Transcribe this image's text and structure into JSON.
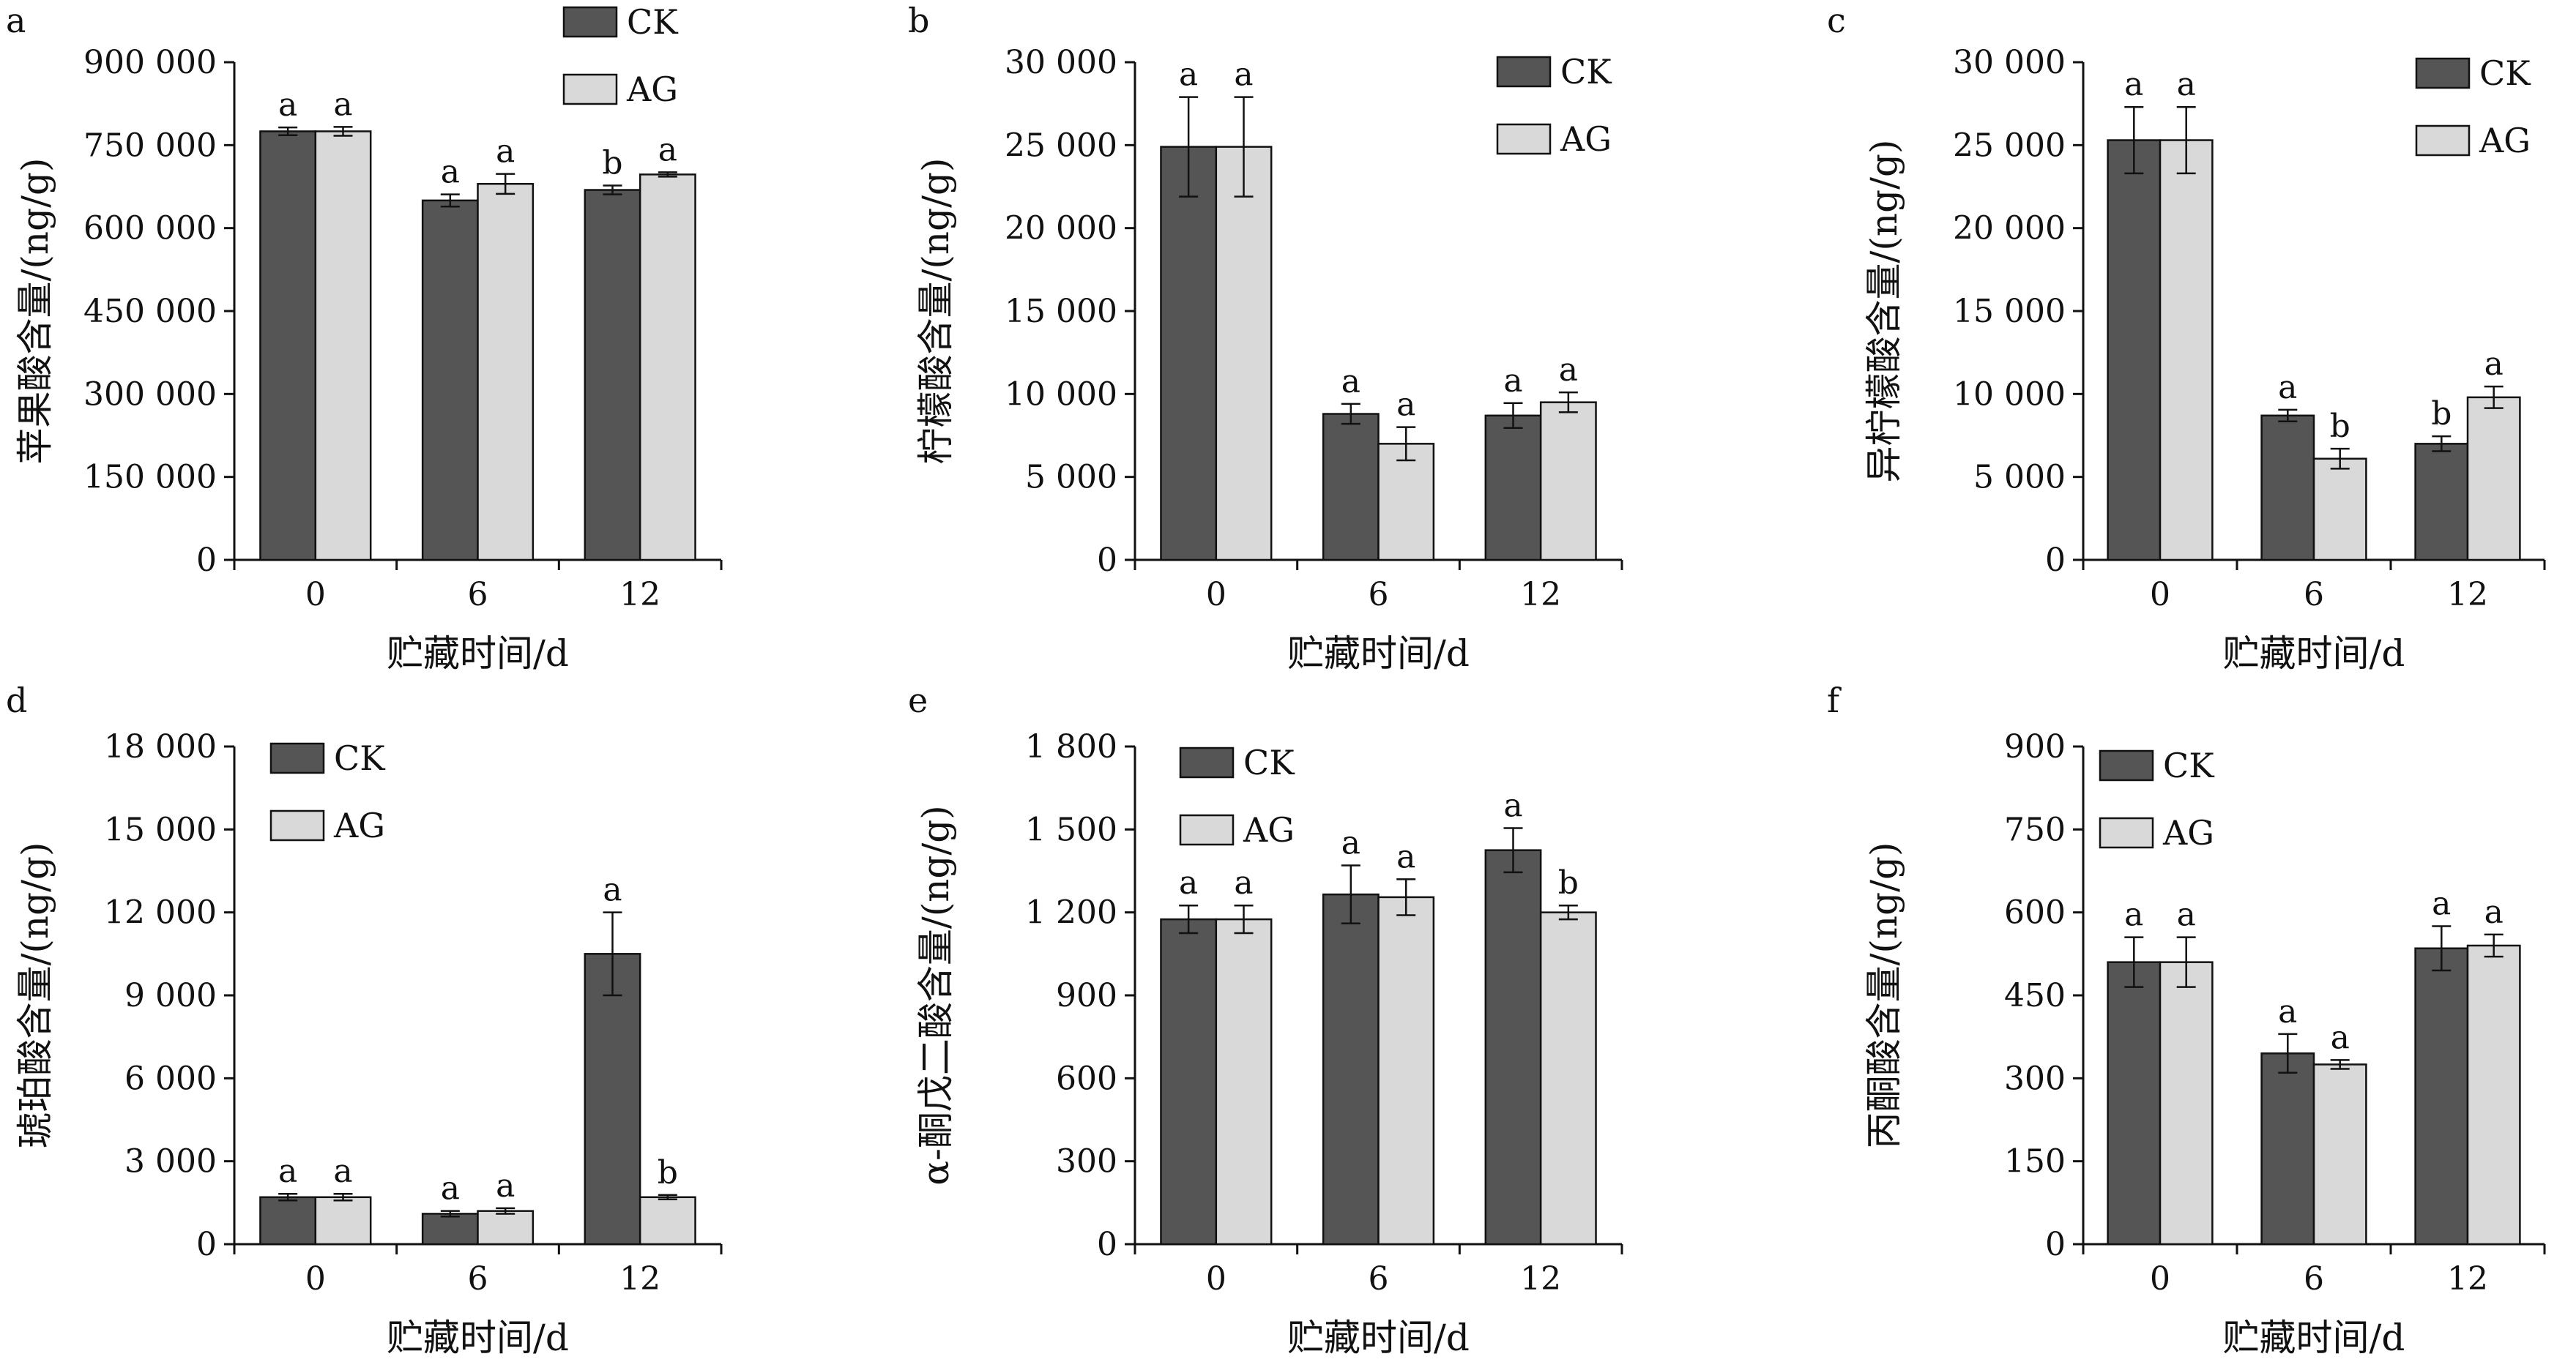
{
  "colors": {
    "CK": "#555555",
    "AG": "#d9d9d9",
    "axis": "#111111"
  },
  "chart_data": [
    {
      "type": "bar",
      "panel": "a",
      "categories": [
        "0",
        "6",
        "12"
      ],
      "xlabel": "贮藏时间/d",
      "ylabel": "苹果酸含量/(ng/g)",
      "ylim": [
        0,
        900000
      ],
      "yticks": [
        "0",
        "150 000",
        "300 000",
        "450 000",
        "600 000",
        "750 000",
        "900 000"
      ],
      "legend": [
        "CK",
        "AG"
      ],
      "legend_position": "top-right",
      "series": [
        {
          "name": "CK",
          "values": [
            775000,
            650000,
            669000
          ],
          "errors": [
            7000,
            11000,
            8000
          ],
          "labels": [
            "a",
            "a",
            "b"
          ]
        },
        {
          "name": "AG",
          "values": [
            775000,
            680000,
            697000
          ],
          "errors": [
            8000,
            18000,
            4000
          ],
          "labels": [
            "a",
            "a",
            "a"
          ]
        }
      ]
    },
    {
      "type": "bar",
      "panel": "b",
      "categories": [
        "0",
        "6",
        "12"
      ],
      "xlabel": "贮藏时间/d",
      "ylabel": "柠檬酸含量/(ng/g)",
      "ylim": [
        0,
        30000
      ],
      "yticks": [
        "0",
        "5 000",
        "10 000",
        "15 000",
        "20 000",
        "25 000",
        "30 000"
      ],
      "legend": [
        "CK",
        "AG"
      ],
      "legend_position": "top-right",
      "series": [
        {
          "name": "CK",
          "values": [
            24900,
            8800,
            8700
          ],
          "errors": [
            3000,
            600,
            750
          ],
          "labels": [
            "a",
            "a",
            "a"
          ]
        },
        {
          "name": "AG",
          "values": [
            24900,
            7000,
            9500
          ],
          "errors": [
            3000,
            1000,
            600
          ],
          "labels": [
            "a",
            "a",
            "a"
          ]
        }
      ]
    },
    {
      "type": "bar",
      "panel": "c",
      "categories": [
        "0",
        "6",
        "12"
      ],
      "xlabel": "贮藏时间/d",
      "ylabel": "异柠檬酸含量/(ng/g)",
      "ylim": [
        0,
        30000
      ],
      "yticks": [
        "0",
        "5 000",
        "10 000",
        "15 000",
        "20 000",
        "25 000",
        "30 000"
      ],
      "legend": [
        "CK",
        "AG"
      ],
      "legend_position": "top-right",
      "series": [
        {
          "name": "CK",
          "values": [
            25300,
            8700,
            7000
          ],
          "errors": [
            2000,
            350,
            450
          ],
          "labels": [
            "a",
            "a",
            "b"
          ]
        },
        {
          "name": "AG",
          "values": [
            25300,
            6100,
            9800
          ],
          "errors": [
            2000,
            600,
            650
          ],
          "labels": [
            "a",
            "b",
            "a"
          ]
        }
      ]
    },
    {
      "type": "bar",
      "panel": "d",
      "categories": [
        "0",
        "6",
        "12"
      ],
      "xlabel": "贮藏时间/d",
      "ylabel": "琥珀酸含量/(ng/g)",
      "ylim": [
        0,
        18000
      ],
      "yticks": [
        "0",
        "3 000",
        "6 000",
        "9 000",
        "12 000",
        "15 000",
        "18 000"
      ],
      "legend": [
        "CK",
        "AG"
      ],
      "legend_position": "top-left",
      "series": [
        {
          "name": "CK",
          "values": [
            1700,
            1100,
            10500
          ],
          "errors": [
            120,
            100,
            1500
          ],
          "labels": [
            "a",
            "a",
            "a"
          ]
        },
        {
          "name": "AG",
          "values": [
            1700,
            1200,
            1700
          ],
          "errors": [
            120,
            100,
            80
          ],
          "labels": [
            "a",
            "a",
            "b"
          ]
        }
      ]
    },
    {
      "type": "bar",
      "panel": "e",
      "categories": [
        "0",
        "6",
        "12"
      ],
      "xlabel": "贮藏时间/d",
      "ylabel": "α-酮戊二酸含量/(ng/g)",
      "ylim": [
        0,
        1800
      ],
      "yticks": [
        "0",
        "300",
        "600",
        "900",
        "1 200",
        "1 500",
        "1 800"
      ],
      "legend": [
        "CK",
        "AG"
      ],
      "legend_position": "top-left",
      "series": [
        {
          "name": "CK",
          "values": [
            1175,
            1265,
            1425
          ],
          "errors": [
            50,
            105,
            80
          ],
          "labels": [
            "a",
            "a",
            "a"
          ]
        },
        {
          "name": "AG",
          "values": [
            1175,
            1255,
            1200
          ],
          "errors": [
            50,
            65,
            25
          ],
          "labels": [
            "a",
            "a",
            "b"
          ]
        }
      ]
    },
    {
      "type": "bar",
      "panel": "f",
      "categories": [
        "0",
        "6",
        "12"
      ],
      "xlabel": "贮藏时间/d",
      "ylabel": "丙酮酸含量/(ng/g)",
      "ylim": [
        0,
        900
      ],
      "yticks": [
        "0",
        "150",
        "300",
        "450",
        "600",
        "750",
        "900"
      ],
      "legend": [
        "CK",
        "AG"
      ],
      "legend_position": "top-left",
      "series": [
        {
          "name": "CK",
          "values": [
            510,
            345,
            535
          ],
          "errors": [
            45,
            35,
            40
          ],
          "labels": [
            "a",
            "a",
            "a"
          ]
        },
        {
          "name": "AG",
          "values": [
            510,
            325,
            540
          ],
          "errors": [
            45,
            8,
            20
          ],
          "labels": [
            "a",
            "a",
            "a"
          ]
        }
      ]
    }
  ]
}
